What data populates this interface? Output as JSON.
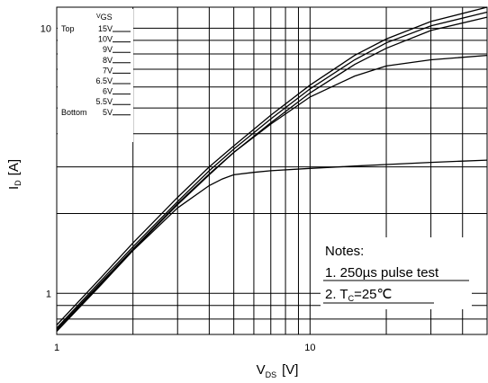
{
  "chart_data": {
    "type": "line",
    "x_scale": "log",
    "y_scale": "log",
    "xlim": [
      1,
      50
    ],
    "ylim": [
      0.7,
      12
    ],
    "grid": true,
    "x_ticks": [
      "1",
      "10"
    ],
    "y_ticks": [
      "1",
      "10"
    ],
    "ylabel": {
      "main": "I",
      "sub": "D",
      "unit": "[A]"
    },
    "xlabel": {
      "main": "V",
      "sub": "DS",
      "unit": "[V]"
    },
    "legend": {
      "position": "top-left",
      "header": "V",
      "header_sub": "GS",
      "top_label": "Top",
      "bottom_label": "Bottom",
      "entries": [
        "15V",
        "10V",
        "9V",
        "8V",
        "7V",
        "6.5V",
        "6V",
        "5.5V",
        "5V"
      ]
    },
    "notes": {
      "title": "Notes:",
      "line1": "1. 250µs pulse test",
      "line2_prefix": "2. T",
      "line2_sub": "C",
      "line2_suffix": "=25℃"
    },
    "series": [
      {
        "x": [
          1,
          1.5,
          2,
          3,
          4,
          5,
          7,
          10,
          15,
          20,
          30,
          50
        ],
        "y": [
          0.76,
          1.15,
          1.55,
          2.3,
          3.0,
          3.6,
          4.7,
          6.1,
          7.9,
          9.1,
          10.6,
          12.0
        ]
      },
      {
        "x": [
          1,
          1.5,
          2,
          3,
          4,
          5,
          7,
          10,
          15,
          20,
          30,
          50
        ],
        "y": [
          0.74,
          1.12,
          1.5,
          2.22,
          2.9,
          3.5,
          4.55,
          5.9,
          7.6,
          8.8,
          10.2,
          11.5
        ]
      },
      {
        "x": [
          1,
          1.5,
          2,
          3,
          4,
          5,
          7,
          10,
          15,
          20,
          30,
          50
        ],
        "y": [
          0.72,
          1.09,
          1.46,
          2.16,
          2.8,
          3.4,
          4.4,
          5.7,
          7.3,
          8.4,
          9.8,
          11.0
        ]
      },
      {
        "x": [
          1,
          1.5,
          2,
          3,
          4,
          5,
          7,
          10,
          15,
          20,
          30,
          50
        ],
        "y": [
          0.73,
          1.1,
          1.47,
          2.18,
          2.82,
          3.4,
          4.35,
          5.5,
          6.6,
          7.2,
          7.6,
          7.9
        ]
      },
      {
        "x": [
          1,
          1.5,
          2,
          3,
          4,
          4.5,
          5,
          6,
          7,
          10,
          15,
          20,
          30,
          50
        ],
        "y": [
          0.72,
          1.08,
          1.45,
          2.1,
          2.55,
          2.7,
          2.8,
          2.86,
          2.9,
          2.96,
          3.02,
          3.06,
          3.12,
          3.18
        ]
      }
    ]
  }
}
